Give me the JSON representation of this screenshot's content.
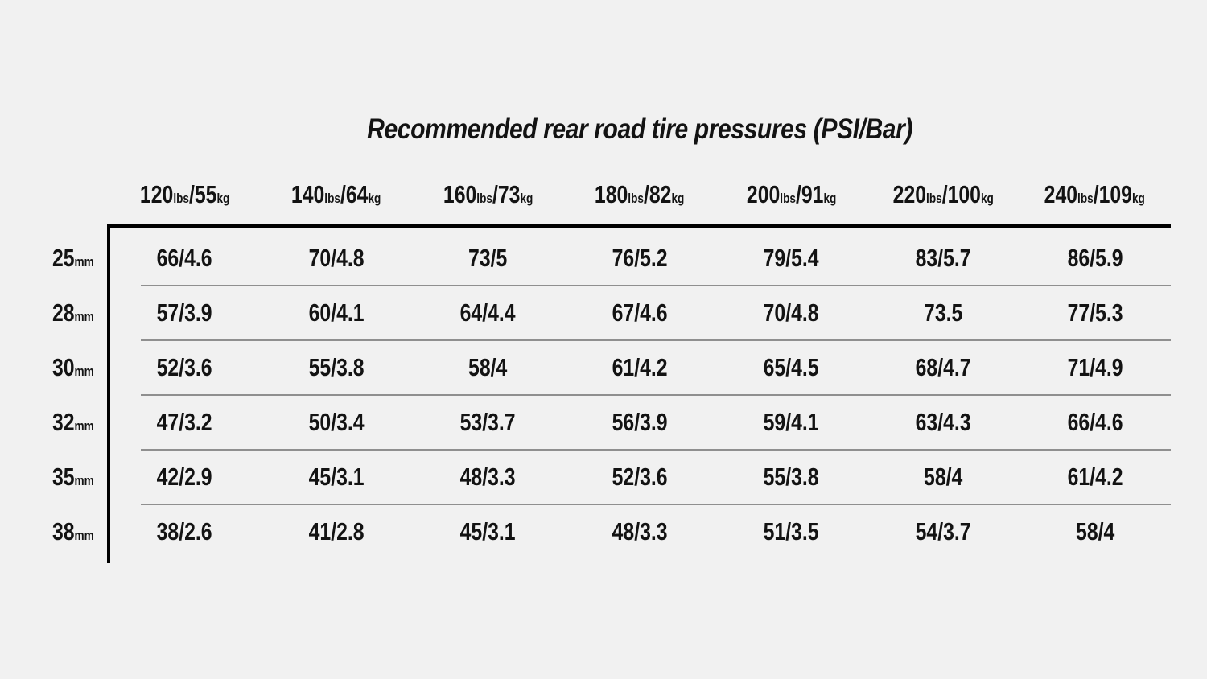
{
  "style": {
    "background": "#f1f1f1",
    "text_color": "#131313",
    "frame_color": "#000000",
    "row_separator_color": "#8f8f8f"
  },
  "chart_data": {
    "type": "table",
    "title": "Recommended rear road tire pressures (PSI/Bar)",
    "separator": "/",
    "units": {
      "pounds": "lbs",
      "kilograms": "kg",
      "millimeters": "mm"
    },
    "column_headers": [
      {
        "lbs": "120",
        "kg": "55"
      },
      {
        "lbs": "140",
        "kg": "64"
      },
      {
        "lbs": "160",
        "kg": "73"
      },
      {
        "lbs": "180",
        "kg": "82"
      },
      {
        "lbs": "200",
        "kg": "91"
      },
      {
        "lbs": "220",
        "kg": "100"
      },
      {
        "lbs": "240",
        "kg": "109"
      }
    ],
    "rows": [
      {
        "tire_width": "25",
        "values": [
          "66/4.6",
          "70/4.8",
          "73/5",
          "76/5.2",
          "79/5.4",
          "83/5.7",
          "86/5.9"
        ]
      },
      {
        "tire_width": "28",
        "values": [
          "57/3.9",
          "60/4.1",
          "64/4.4",
          "67/4.6",
          "70/4.8",
          "73.5",
          "77/5.3"
        ]
      },
      {
        "tire_width": "30",
        "values": [
          "52/3.6",
          "55/3.8",
          "58/4",
          "61/4.2",
          "65/4.5",
          "68/4.7",
          "71/4.9"
        ]
      },
      {
        "tire_width": "32",
        "values": [
          "47/3.2",
          "50/3.4",
          "53/3.7",
          "56/3.9",
          "59/4.1",
          "63/4.3",
          "66/4.6"
        ]
      },
      {
        "tire_width": "35",
        "values": [
          "42/2.9",
          "45/3.1",
          "48/3.3",
          "52/3.6",
          "55/3.8",
          "58/4",
          "61/4.2"
        ]
      },
      {
        "tire_width": "38",
        "values": [
          "38/2.6",
          "41/2.8",
          "45/3.1",
          "48/3.3",
          "51/3.5",
          "54/3.7",
          "58/4"
        ]
      }
    ]
  }
}
